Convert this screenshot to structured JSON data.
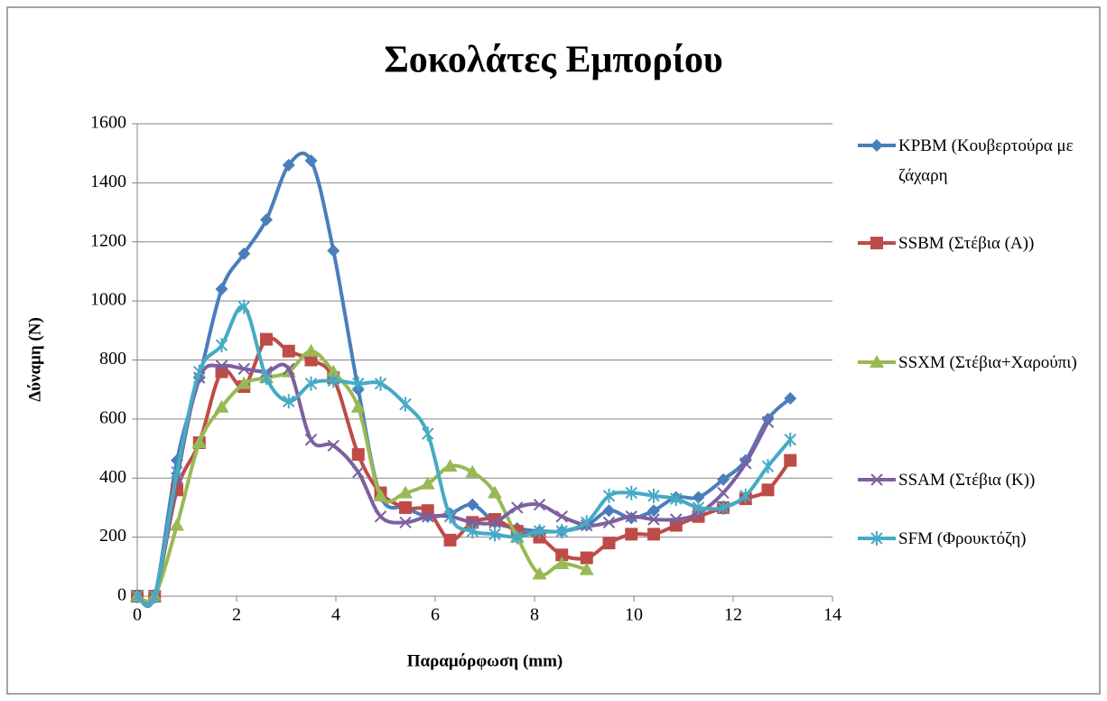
{
  "chart_data": {
    "type": "line",
    "title": "Σοκολάτες Εμπορίου",
    "x_label": "Παραμόρφωση (mm)",
    "y_label": "Δύναμη (N)",
    "xlim": [
      0,
      14
    ],
    "xticks": [
      0,
      2,
      4,
      6,
      8,
      10,
      12,
      14
    ],
    "ylim": [
      0,
      1600
    ],
    "yticks": [
      0,
      200,
      400,
      600,
      800,
      1000,
      1200,
      1400,
      1600
    ],
    "grid": true,
    "smooth": true,
    "legend": "right",
    "x": [
      0,
      0.35,
      0.8,
      1.25,
      1.7,
      2.15,
      2.6,
      3.05,
      3.5,
      3.95,
      4.45,
      4.9,
      5.4,
      5.85,
      6.3,
      6.75,
      7.2,
      7.65,
      8.1,
      8.55,
      9.05,
      9.5,
      9.95,
      10.4,
      10.85,
      11.3,
      11.8,
      12.25,
      12.7,
      13.15
    ],
    "series": [
      {
        "name": "KPBM (Κουβερτούρα με ζάχαρη",
        "color": "#4a7ebb",
        "marker": "diamond",
        "values": [
          0,
          0,
          460,
          740,
          1040,
          1160,
          1275,
          1460,
          1475,
          1170,
          700,
          340,
          300,
          270,
          280,
          310,
          250,
          230,
          220,
          220,
          240,
          290,
          265,
          290,
          335,
          335,
          395,
          460,
          600,
          670
        ]
      },
      {
        "name": "SSBM (Στέβια (A))",
        "color": "#be4b48",
        "marker": "square",
        "values": [
          0,
          0,
          360,
          520,
          760,
          710,
          870,
          830,
          800,
          740,
          480,
          350,
          300,
          290,
          190,
          250,
          260,
          220,
          200,
          140,
          130,
          180,
          210,
          210,
          240,
          270,
          300,
          330,
          360,
          460
        ]
      },
      {
        "name": "SSXM (Στέβια+Χαρούπι)",
        "color": "#98b954",
        "marker": "triangle",
        "values": [
          0,
          0,
          240,
          520,
          640,
          720,
          740,
          760,
          830,
          760,
          640,
          340,
          350,
          380,
          440,
          420,
          350,
          200,
          75,
          110,
          90,
          null,
          null,
          null,
          null,
          null,
          null,
          null,
          null,
          null
        ]
      },
      {
        "name": "SSAM (Στέβια (K))",
        "color": "#7d60a0",
        "marker": "x",
        "values": [
          0,
          0,
          400,
          740,
          780,
          770,
          760,
          770,
          530,
          510,
          420,
          270,
          250,
          270,
          270,
          250,
          250,
          300,
          310,
          270,
          240,
          250,
          270,
          260,
          260,
          280,
          350,
          450,
          590,
          null
        ]
      },
      {
        "name": "SFM (Φρουκτόζη)",
        "color": "#46aac5",
        "marker": "star",
        "values": [
          0,
          0,
          420,
          760,
          850,
          980,
          740,
          660,
          720,
          730,
          720,
          720,
          650,
          550,
          270,
          220,
          210,
          200,
          220,
          220,
          250,
          340,
          350,
          340,
          330,
          300,
          300,
          340,
          440,
          530
        ]
      }
    ]
  }
}
